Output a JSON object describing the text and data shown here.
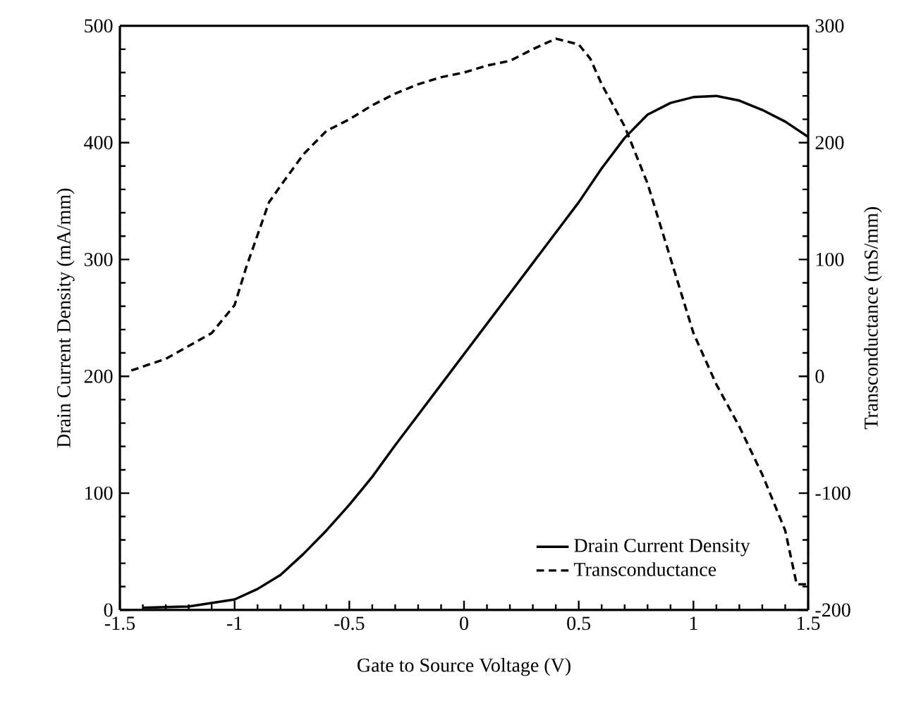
{
  "chart_data": {
    "type": "line",
    "xlabel": "Gate to Source Voltage (V)",
    "ylabel": "Drain Current Density (mA/mm)",
    "y2label": "Transconductance (mS/mm)",
    "xlim": [
      -1.5,
      1.5
    ],
    "xticks": [
      -1.5,
      -1,
      -0.5,
      0,
      0.5,
      1,
      1.5
    ],
    "ylim": [
      0,
      500
    ],
    "yticks": [
      0,
      100,
      200,
      300,
      400,
      500
    ],
    "y2lim": [
      -200,
      300
    ],
    "y2ticks": [
      -200,
      -100,
      0,
      100,
      200,
      300
    ],
    "legend": "bottom right",
    "grid": false,
    "marker": "none",
    "series": [
      {
        "name": "Drain Current Density",
        "color": "#000000",
        "line_style": "solid",
        "x": [
          -1.4,
          -1.2,
          -1.0,
          -0.9,
          -0.8,
          -0.7,
          -0.6,
          -0.5,
          -0.4,
          -0.3,
          -0.2,
          -0.1,
          0,
          0.1,
          0.2,
          0.3,
          0.4,
          0.5,
          0.6,
          0.7,
          0.8,
          0.9,
          1.0,
          1.1,
          1.2,
          1.3,
          1.4,
          1.5
        ],
        "values": [
          2,
          3,
          9,
          18,
          30,
          48,
          68,
          90,
          114,
          141,
          167,
          193,
          219,
          245,
          271,
          297,
          323,
          349,
          378,
          404,
          424,
          434,
          439,
          440,
          436,
          428,
          418,
          405
        ]
      },
      {
        "name": "Transconductance",
        "color": "#000000",
        "line_style": "dashed",
        "axis": "y2",
        "x": [
          -1.45,
          -1.3,
          -1.1,
          -1.0,
          -0.95,
          -0.9,
          -0.85,
          -0.8,
          -0.7,
          -0.6,
          -0.5,
          -0.4,
          -0.3,
          -0.2,
          -0.1,
          0,
          0.1,
          0.2,
          0.3,
          0.4,
          0.5,
          0.55,
          0.6,
          0.7,
          0.8,
          0.9,
          1.0,
          1.1,
          1.2,
          1.3,
          1.4,
          1.45,
          1.5
        ],
        "values": [
          5,
          15,
          37,
          61,
          93,
          121,
          149,
          163,
          190,
          210,
          220,
          232,
          242,
          250,
          256,
          260,
          266,
          270,
          280,
          289,
          284,
          272,
          250,
          214,
          165,
          101,
          37,
          -7,
          -43,
          -84,
          -132,
          -178,
          -178
        ]
      }
    ]
  }
}
